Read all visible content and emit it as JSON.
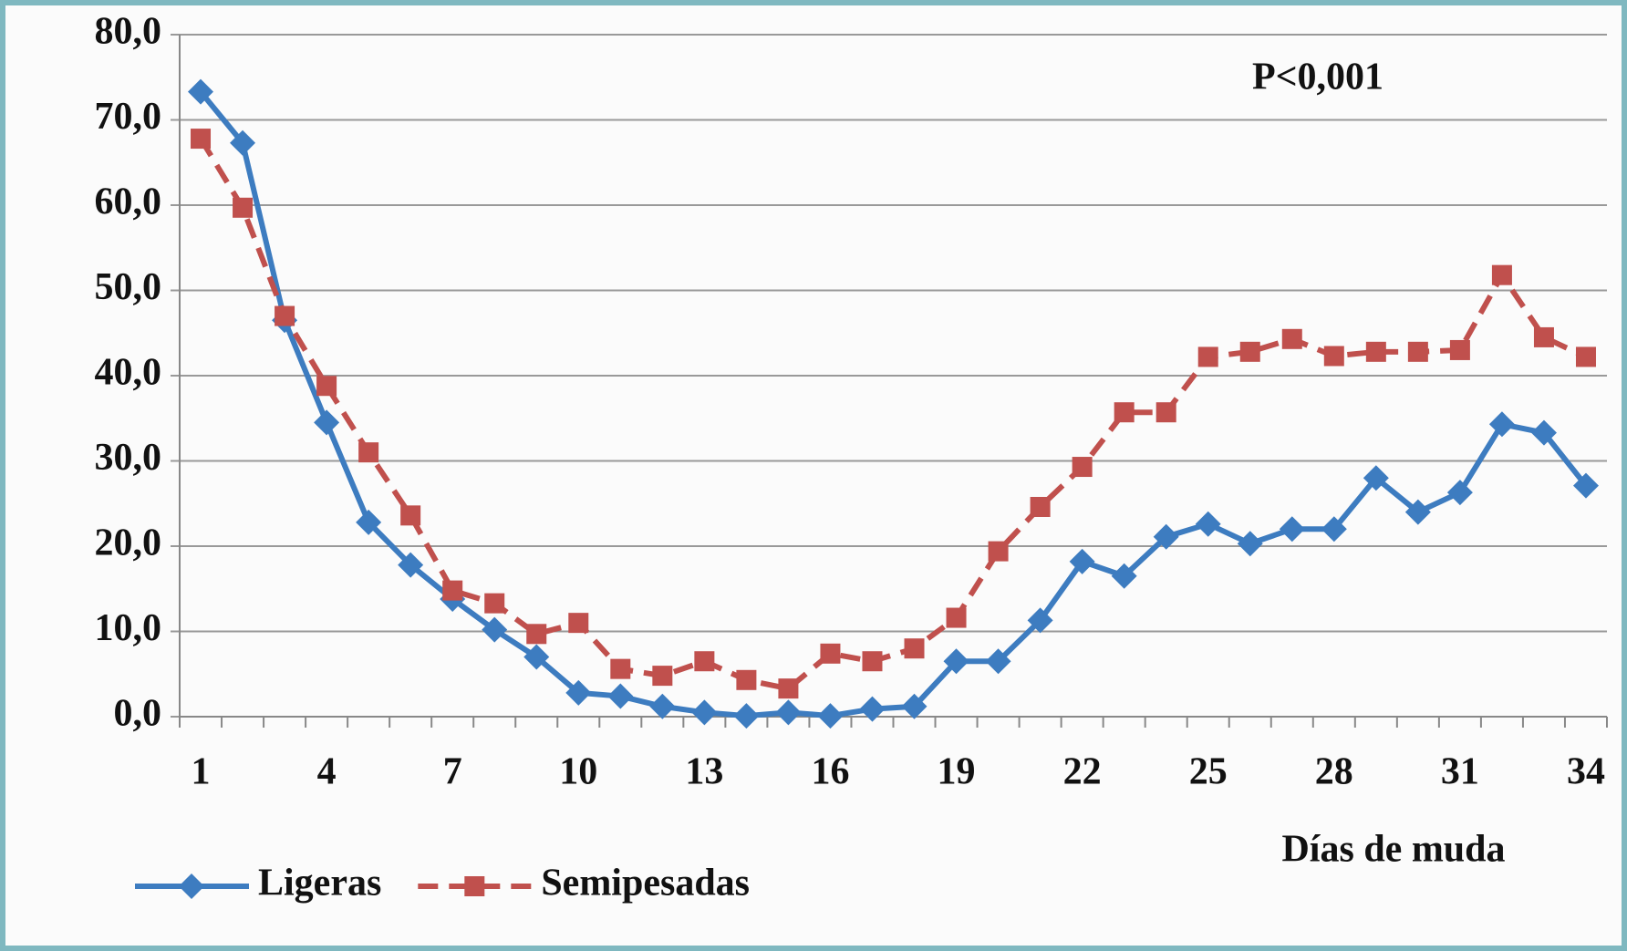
{
  "chart_data": {
    "type": "line",
    "annotation": "P<0,001",
    "x_label": "Días de muda",
    "categories": [
      1,
      null,
      null,
      4,
      null,
      null,
      7,
      null,
      null,
      10,
      null,
      null,
      13,
      null,
      null,
      16,
      null,
      null,
      19,
      null,
      null,
      22,
      null,
      null,
      25,
      null,
      null,
      28,
      null,
      null,
      31,
      null,
      null,
      34
    ],
    "series": [
      {
        "name": "Ligeras",
        "color": "#3d7cc0",
        "marker": "diamond",
        "dash": false,
        "values": [
          73.3,
          67.3,
          46.5,
          34.5,
          22.8,
          17.8,
          13.8,
          10.2,
          7.0,
          2.8,
          2.4,
          1.2,
          0.5,
          0.1,
          0.5,
          0.1,
          0.9,
          1.2,
          6.5,
          6.5,
          11.3,
          18.2,
          16.5,
          21.1,
          22.6,
          20.3,
          22.0,
          22.0,
          28.0,
          24.0,
          26.3,
          34.3,
          33.3,
          27.1
        ]
      },
      {
        "name": "Semipesadas",
        "color": "#c0504d",
        "marker": "square",
        "dash": true,
        "values": [
          67.8,
          59.7,
          47.0,
          38.8,
          31.0,
          23.6,
          14.8,
          13.3,
          9.7,
          11.0,
          5.6,
          4.8,
          6.5,
          4.3,
          3.3,
          7.4,
          6.5,
          8.0,
          11.6,
          19.4,
          24.6,
          29.3,
          35.7,
          35.7,
          42.2,
          42.8,
          44.3,
          42.3,
          42.8,
          42.8,
          43.0,
          51.8,
          44.5,
          42.2
        ]
      }
    ],
    "ylim": [
      0,
      80
    ],
    "yticks": [
      {
        "value": 0,
        "label": "0,0"
      },
      {
        "value": 10,
        "label": "10,0"
      },
      {
        "value": 20,
        "label": "20,0"
      },
      {
        "value": 30,
        "label": "30,0"
      },
      {
        "value": 40,
        "label": "40,0"
      },
      {
        "value": 50,
        "label": "50,0"
      },
      {
        "value": 60,
        "label": "60,0"
      },
      {
        "value": 70,
        "label": "70,0"
      },
      {
        "value": 80,
        "label": "80,0"
      }
    ],
    "grid": true,
    "legend": "bottom-left"
  }
}
